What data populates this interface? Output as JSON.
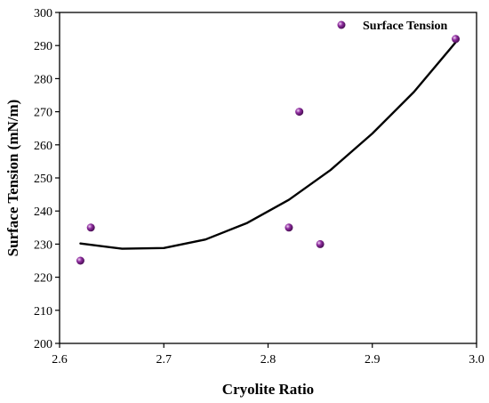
{
  "chart_data": {
    "type": "scatter",
    "title": "",
    "xlabel": "Cryolite Ratio",
    "ylabel": "Surface Tension (mN/m)",
    "xlim": [
      2.6,
      3.0
    ],
    "ylim": [
      200,
      300
    ],
    "xticks": [
      "2.6",
      "2.7",
      "2.8",
      "2.9",
      "3.0"
    ],
    "yticks": [
      "200",
      "210",
      "220",
      "230",
      "240",
      "250",
      "260",
      "270",
      "280",
      "290",
      "300"
    ],
    "grid": false,
    "legend": "top-right",
    "series": [
      {
        "name": "Surface Tension",
        "color": "#8e2c9e",
        "x": [
          2.62,
          2.63,
          2.82,
          2.83,
          2.85,
          2.98
        ],
        "y": [
          225,
          235,
          235,
          270,
          230,
          292
        ]
      }
    ],
    "fit": {
      "type": "polynomial-2",
      "color": "#000000",
      "x": [
        2.62,
        2.66,
        2.7,
        2.74,
        2.78,
        2.82,
        2.86,
        2.9,
        2.94,
        2.98
      ],
      "y": [
        230.2,
        228.6,
        228.8,
        231.4,
        236.4,
        243.4,
        252.4,
        263.4,
        276.0,
        291.0
      ]
    }
  }
}
